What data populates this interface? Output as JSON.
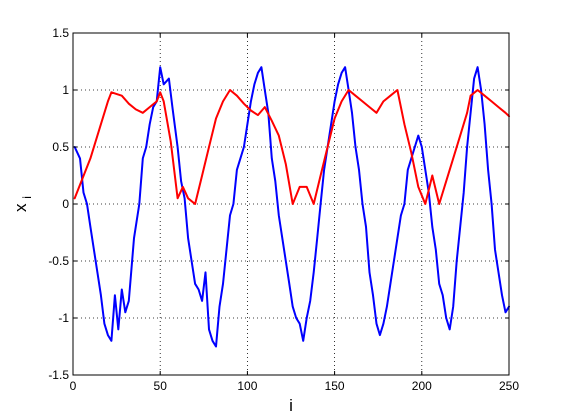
{
  "chart_data": {
    "type": "line",
    "xlabel": "i",
    "ylabel": "x",
    "ylabel_subscript": "i",
    "xlim": [
      0,
      250
    ],
    "ylim": [
      -1.5,
      1.5
    ],
    "xticks": [
      0,
      50,
      100,
      150,
      200,
      250
    ],
    "yticks": [
      -1.5,
      -1,
      -0.5,
      0,
      0.5,
      1,
      1.5
    ],
    "xtick_labels": [
      "0",
      "50",
      "100",
      "150",
      "200",
      "250"
    ],
    "ytick_labels": [
      "-1.5",
      "-1",
      "-0.5",
      "0",
      "0.5",
      "1",
      "1.5"
    ],
    "grid": true,
    "series": [
      {
        "color": "#0000ff",
        "x": [
          1,
          4,
          6,
          8,
          10,
          12,
          14,
          16,
          18,
          20,
          22,
          24,
          26,
          28,
          30,
          32,
          35,
          38,
          40,
          42,
          44,
          46,
          48,
          50,
          52,
          55,
          57,
          60,
          62,
          64,
          66,
          68,
          70,
          72,
          74,
          76,
          78,
          80,
          82,
          84,
          86,
          88,
          90,
          92,
          94,
          96,
          98,
          100,
          102,
          104,
          106,
          108,
          110,
          112,
          114,
          116,
          118,
          120,
          122,
          124,
          126,
          128,
          130,
          132,
          134,
          136,
          138,
          140,
          142,
          144,
          146,
          148,
          150,
          152,
          154,
          156,
          158,
          160,
          162,
          164,
          166,
          168,
          170,
          172,
          174,
          176,
          178,
          180,
          182,
          184,
          186,
          188,
          190,
          192,
          194,
          196,
          198,
          200,
          202,
          204,
          206,
          208,
          210,
          212,
          214,
          216,
          218,
          220,
          222,
          224,
          226,
          228,
          230,
          232,
          234,
          236,
          238,
          240,
          242,
          244,
          246,
          248,
          250
        ],
        "y": [
          0.5,
          0.4,
          0.1,
          0.0,
          -0.2,
          -0.4,
          -0.6,
          -0.8,
          -1.05,
          -1.15,
          -1.2,
          -0.8,
          -1.1,
          -0.75,
          -0.95,
          -0.85,
          -0.3,
          0.0,
          0.4,
          0.5,
          0.7,
          0.85,
          0.9,
          1.2,
          1.05,
          1.1,
          0.85,
          0.5,
          0.2,
          0.05,
          -0.3,
          -0.5,
          -0.7,
          -0.75,
          -0.85,
          -0.6,
          -1.1,
          -1.2,
          -1.25,
          -0.9,
          -0.7,
          -0.4,
          -0.1,
          0.0,
          0.3,
          0.4,
          0.5,
          0.7,
          0.9,
          1.05,
          1.15,
          1.2,
          1.0,
          0.8,
          0.4,
          0.2,
          -0.1,
          -0.3,
          -0.5,
          -0.7,
          -0.9,
          -1.0,
          -1.05,
          -1.2,
          -1.0,
          -0.85,
          -0.6,
          -0.3,
          0.0,
          0.3,
          0.5,
          0.7,
          0.9,
          1.05,
          1.15,
          1.2,
          1.0,
          0.8,
          0.5,
          0.3,
          0.0,
          -0.2,
          -0.6,
          -0.8,
          -1.05,
          -1.15,
          -1.05,
          -0.9,
          -0.7,
          -0.5,
          -0.3,
          -0.1,
          0.0,
          0.3,
          0.4,
          0.5,
          0.6,
          0.5,
          0.3,
          0.1,
          -0.2,
          -0.4,
          -0.7,
          -0.8,
          -1.0,
          -1.1,
          -0.9,
          -0.5,
          -0.2,
          0.1,
          0.5,
          0.8,
          1.1,
          1.2,
          1.0,
          0.7,
          0.3,
          0.0,
          -0.4,
          -0.6,
          -0.8,
          -0.95,
          -0.9
        ]
      },
      {
        "color": "#ff0000",
        "x": [
          1,
          10,
          20,
          22,
          28,
          32,
          36,
          40,
          44,
          48,
          50,
          52,
          56,
          60,
          63,
          66,
          70,
          74,
          78,
          82,
          86,
          90,
          94,
          98,
          102,
          106,
          110,
          114,
          118,
          122,
          126,
          130,
          134,
          138,
          142,
          146,
          150,
          154,
          158,
          162,
          166,
          170,
          174,
          178,
          182,
          186,
          190,
          194,
          198,
          202,
          206,
          210,
          214,
          218,
          222,
          226,
          228,
          232,
          236,
          240,
          244,
          248,
          250
        ],
        "y": [
          0.05,
          0.4,
          0.9,
          0.98,
          0.95,
          0.88,
          0.83,
          0.8,
          0.85,
          0.9,
          0.98,
          0.9,
          0.55,
          0.05,
          0.15,
          0.05,
          0.0,
          0.25,
          0.5,
          0.75,
          0.9,
          1.0,
          0.95,
          0.88,
          0.82,
          0.78,
          0.85,
          0.73,
          0.6,
          0.35,
          0.0,
          0.15,
          0.15,
          0.0,
          0.25,
          0.5,
          0.75,
          0.9,
          1.0,
          0.95,
          0.9,
          0.85,
          0.8,
          0.9,
          0.95,
          1.0,
          0.7,
          0.45,
          0.15,
          0.0,
          0.25,
          0.0,
          0.2,
          0.4,
          0.6,
          0.8,
          0.95,
          1.0,
          0.95,
          0.9,
          0.85,
          0.8,
          0.77
        ]
      }
    ]
  }
}
